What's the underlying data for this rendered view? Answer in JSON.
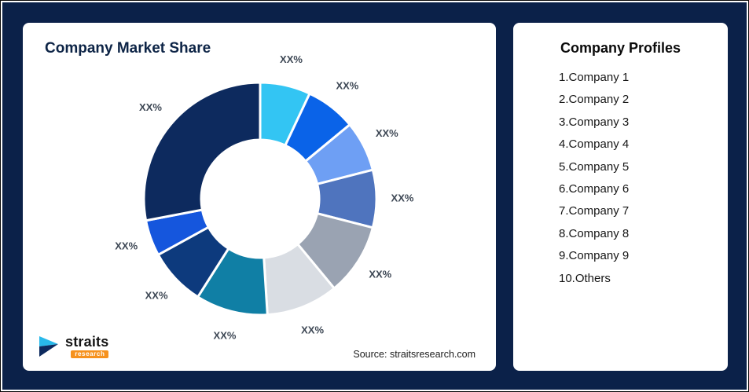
{
  "chart": {
    "title": "Company Market Share",
    "source": "Source: straitsresearch.com"
  },
  "chart_data": {
    "type": "pie",
    "donut": true,
    "title": "Company Market Share",
    "legend_position": "none",
    "note": "data labels are XX% placeholders; slice sizes estimated from arc angles",
    "segments": [
      {
        "company": "Company 1",
        "label": "XX%",
        "value": 7,
        "color": "#33c5f3"
      },
      {
        "company": "Company 2",
        "label": "XX%",
        "value": 7,
        "color": "#0a63e8"
      },
      {
        "company": "Company 3",
        "label": "XX%",
        "value": 7,
        "color": "#6e9ff4"
      },
      {
        "company": "Company 4",
        "label": "XX%",
        "value": 8,
        "color": "#4f74be"
      },
      {
        "company": "Company 5",
        "label": "XX%",
        "value": 10,
        "color": "#9aa3b2"
      },
      {
        "company": "Company 6",
        "label": "XX%",
        "value": 10,
        "color": "#d9dde3"
      },
      {
        "company": "Company 7",
        "label": "XX%",
        "value": 10,
        "color": "#107fa5"
      },
      {
        "company": "Company 8",
        "label": "XX%",
        "value": 8,
        "color": "#0d3a7d"
      },
      {
        "company": "Company 9",
        "label": "XX%",
        "value": 5,
        "color": "#1556dd"
      },
      {
        "company": "Others",
        "label": "XX%",
        "value": 28,
        "color": "#0d2a5e"
      }
    ]
  },
  "profiles": {
    "title": "Company Profiles",
    "items": [
      "1.Company 1",
      "2.Company 2",
      "3.Company 3",
      "4.Company 4",
      "5.Company 5",
      "6.Company 6",
      "7.Company 7",
      "8.Company 8",
      "9.Company 9",
      "10.Others"
    ]
  },
  "logo": {
    "word": "straits",
    "subword": "research"
  },
  "colors": {
    "background": "#0b2149",
    "card": "#ffffff",
    "title_text": "#0d2446",
    "label_text": "#3d4754",
    "logo_accent": "#f6921e",
    "logo_cyan": "#29b9ea",
    "logo_navy": "#0d2a5e"
  }
}
